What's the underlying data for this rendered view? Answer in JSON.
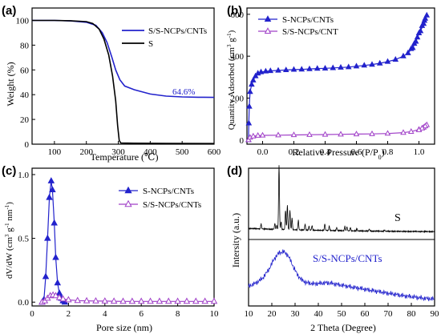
{
  "colors": {
    "blue": "#2222cc",
    "purple": "#a040c8",
    "black": "#000000"
  },
  "chart_data": [
    {
      "type": "line",
      "panel_label": "(a)",
      "xlabel": "Temperature (℃)",
      "ylabel": "Weight (%)",
      "xlim": [
        30,
        600
      ],
      "ylim": [
        0,
        110
      ],
      "xticks": [
        100,
        200,
        300,
        400,
        500,
        600
      ],
      "yticks": [
        0,
        20,
        40,
        60,
        80,
        100
      ],
      "annotation": "64.6%",
      "legend_position": "top-right",
      "series": [
        {
          "name": "S/S-NCPs/CNTs",
          "color": "#2222cc",
          "points": [
            [
              30,
              100
            ],
            [
              100,
              100
            ],
            [
              150,
              99.6
            ],
            [
              200,
              98.5
            ],
            [
              230,
              96
            ],
            [
              250,
              90
            ],
            [
              265,
              82
            ],
            [
              280,
              70
            ],
            [
              292,
              60
            ],
            [
              305,
              52
            ],
            [
              320,
              47
            ],
            [
              350,
              44
            ],
            [
              400,
              40.5
            ],
            [
              450,
              38.8
            ],
            [
              500,
              38.2
            ],
            [
              550,
              37.9
            ],
            [
              600,
              37.8
            ]
          ]
        },
        {
          "name": "S",
          "color": "#000000",
          "points": [
            [
              30,
              100
            ],
            [
              100,
              100
            ],
            [
              150,
              99.7
            ],
            [
              200,
              99
            ],
            [
              220,
              97.5
            ],
            [
              240,
              93
            ],
            [
              255,
              85
            ],
            [
              270,
              72
            ],
            [
              282,
              55
            ],
            [
              292,
              35
            ],
            [
              298,
              15
            ],
            [
              303,
              3
            ],
            [
              308,
              1
            ],
            [
              350,
              0.8
            ],
            [
              450,
              0.6
            ],
            [
              600,
              0.5
            ]
          ]
        }
      ]
    },
    {
      "type": "line",
      "panel_label": "(b)",
      "xlabel": "Relative Pressure (P/P",
      "xlabel_sub": "0",
      "xlabel_end": ")",
      "ylabel": "Quantity Adsorbed (cm",
      "ylabel_sup1": "3",
      "ylabel_mid": " g",
      "ylabel_sup2": "-1",
      "ylabel_end": ")",
      "xlim": [
        -0.1,
        1.1
      ],
      "ylim": [
        -20,
        630
      ],
      "xticks": [
        0.0,
        0.2,
        0.4,
        0.6,
        0.8,
        1.0
      ],
      "xtick_labels": [
        "0.0",
        "0.2",
        "0.4",
        "0.6",
        "0.8",
        "1.0"
      ],
      "yticks": [
        0,
        200,
        400,
        600
      ],
      "legend_position": "top-left",
      "series": [
        {
          "name": "S-NCPs/CNTs",
          "color": "#2222cc",
          "marker": "filled-triangle",
          "points": [
            [
              -0.09,
              0
            ],
            [
              -0.088,
              80
            ],
            [
              -0.085,
              160
            ],
            [
              -0.08,
              230
            ],
            [
              -0.07,
              265
            ],
            [
              -0.06,
              285
            ],
            [
              -0.045,
              305
            ],
            [
              -0.03,
              318
            ],
            [
              -0.01,
              324
            ],
            [
              0.02,
              328
            ],
            [
              0.05,
              330
            ],
            [
              0.1,
              332
            ],
            [
              0.15,
              334
            ],
            [
              0.2,
              336
            ],
            [
              0.25,
              337
            ],
            [
              0.3,
              339
            ],
            [
              0.35,
              341
            ],
            [
              0.4,
              342
            ],
            [
              0.45,
              344
            ],
            [
              0.5,
              346
            ],
            [
              0.55,
              348
            ],
            [
              0.6,
              352
            ],
            [
              0.65,
              356
            ],
            [
              0.7,
              360
            ],
            [
              0.75,
              366
            ],
            [
              0.8,
              374
            ],
            [
              0.85,
              384
            ],
            [
              0.9,
              400
            ],
            [
              0.93,
              415
            ],
            [
              0.96,
              440
            ],
            [
              0.98,
              470
            ],
            [
              1.0,
              510
            ],
            [
              1.02,
              545
            ],
            [
              1.035,
              570
            ],
            [
              1.05,
              595
            ],
            [
              1.04,
              580
            ],
            [
              1.03,
              555
            ],
            [
              1.01,
              520
            ],
            [
              0.99,
              490
            ],
            [
              0.97,
              460
            ],
            [
              0.95,
              435
            ]
          ]
        },
        {
          "name": "S/S-NCPs/CNT",
          "color": "#a040c8",
          "marker": "open-triangle",
          "points": [
            [
              -0.09,
              0
            ],
            [
              -0.08,
              12
            ],
            [
              -0.06,
              18
            ],
            [
              -0.03,
              21
            ],
            [
              0.0,
              22
            ],
            [
              0.1,
              23
            ],
            [
              0.2,
              24
            ],
            [
              0.3,
              25
            ],
            [
              0.4,
              26
            ],
            [
              0.5,
              27
            ],
            [
              0.6,
              28
            ],
            [
              0.7,
              29
            ],
            [
              0.8,
              31
            ],
            [
              0.9,
              35
            ],
            [
              0.95,
              40
            ],
            [
              1.0,
              50
            ],
            [
              1.03,
              60
            ],
            [
              1.05,
              72
            ],
            [
              1.04,
              66
            ],
            [
              1.02,
              56
            ],
            [
              1.0,
              48
            ]
          ]
        }
      ]
    },
    {
      "type": "line",
      "panel_label": "(c)",
      "xlabel": "Pore size (nm)",
      "ylabel": "dV/dW (cm",
      "ylabel_sup1": "3",
      "ylabel_mid": " g",
      "ylabel_sup2": "-1",
      "ylabel_mid2": " nm",
      "ylabel_sup3": "-1",
      "ylabel_end": ")",
      "xlim": [
        0,
        10
      ],
      "ylim": [
        -0.03,
        1.05
      ],
      "xticks": [
        0,
        2,
        4,
        6,
        8,
        10
      ],
      "yticks": [
        0.0,
        0.5,
        1.0
      ],
      "ytick_labels": [
        "0.0",
        "0.5",
        "1.0"
      ],
      "legend_position": "top-right",
      "series": [
        {
          "name": "S-NCPs/CNTs",
          "color": "#2222cc",
          "marker": "filled-triangle",
          "points": [
            [
              0.55,
              0
            ],
            [
              0.65,
              0.02
            ],
            [
              0.75,
              0.2
            ],
            [
              0.85,
              0.5
            ],
            [
              0.95,
              0.82
            ],
            [
              1.05,
              0.95
            ],
            [
              1.12,
              0.88
            ],
            [
              1.22,
              0.62
            ],
            [
              1.3,
              0.35
            ],
            [
              1.4,
              0.15
            ],
            [
              1.5,
              0.07
            ],
            [
              1.6,
              0.03
            ],
            [
              1.7,
              0.01
            ],
            [
              1.8,
              0
            ]
          ]
        },
        {
          "name": "S/S-NCPs/CNTs",
          "color": "#a040c8",
          "marker": "open-triangle",
          "points": [
            [
              0.55,
              0
            ],
            [
              0.7,
              0.01
            ],
            [
              0.85,
              0.03
            ],
            [
              1.0,
              0.05
            ],
            [
              1.15,
              0.055
            ],
            [
              1.3,
              0.05
            ],
            [
              1.5,
              0.035
            ],
            [
              1.7,
              0.025
            ],
            [
              2.0,
              0.018
            ],
            [
              2.5,
              0.012
            ],
            [
              3.0,
              0.01
            ],
            [
              3.5,
              0.009
            ],
            [
              4.0,
              0.008
            ],
            [
              4.5,
              0.007
            ],
            [
              5.0,
              0.006
            ],
            [
              5.5,
              0.006
            ],
            [
              6.0,
              0.006
            ],
            [
              6.5,
              0.006
            ],
            [
              7.0,
              0.006
            ],
            [
              7.5,
              0.006
            ],
            [
              8.0,
              0.006
            ],
            [
              8.5,
              0.006
            ],
            [
              9.0,
              0.006
            ],
            [
              9.5,
              0.006
            ],
            [
              10.0,
              0.006
            ]
          ]
        }
      ]
    },
    {
      "type": "line",
      "panel_label": "(d)",
      "xlabel": "2 Theta (Degree)",
      "ylabel": "Intersity (a.u.)",
      "xlim": [
        10,
        90
      ],
      "xticks": [
        10,
        20,
        30,
        40,
        50,
        60,
        70,
        80,
        90
      ],
      "yticks_shown": false,
      "series": [
        {
          "name": "S",
          "color": "#000000",
          "label_text": "S",
          "baseline": 0.06,
          "peaks": [
            [
              15.4,
              0.08
            ],
            [
              21.3,
              0.09
            ],
            [
              22.1,
              0.06
            ],
            [
              23.1,
              1.0
            ],
            [
              24.0,
              0.12
            ],
            [
              25.9,
              0.3
            ],
            [
              26.7,
              0.38
            ],
            [
              27.8,
              0.3
            ],
            [
              28.7,
              0.18
            ],
            [
              31.4,
              0.15
            ],
            [
              34.3,
              0.09
            ],
            [
              36.0,
              0.06
            ],
            [
              37.3,
              0.07
            ],
            [
              42.8,
              0.1
            ],
            [
              44.7,
              0.07
            ],
            [
              47.9,
              0.05
            ],
            [
              51.4,
              0.07
            ],
            [
              52.3,
              0.06
            ],
            [
              53.8,
              0.05
            ],
            [
              56.6,
              0.04
            ],
            [
              61.9,
              0.03
            ],
            [
              68.5,
              0.02
            ]
          ]
        },
        {
          "name": "S/S-NCPs/CNTs",
          "color": "#2222cc",
          "label_text": "S/S-NCPs/CNTs",
          "points": [
            [
              10,
              0.3
            ],
            [
              13,
              0.36
            ],
            [
              16,
              0.46
            ],
            [
              19,
              0.66
            ],
            [
              21,
              0.85
            ],
            [
              23,
              0.97
            ],
            [
              25,
              1.0
            ],
            [
              27,
              0.92
            ],
            [
              29,
              0.72
            ],
            [
              31,
              0.53
            ],
            [
              33,
              0.42
            ],
            [
              35,
              0.37
            ],
            [
              38,
              0.35
            ],
            [
              41,
              0.36
            ],
            [
              44,
              0.37
            ],
            [
              47,
              0.35
            ],
            [
              50,
              0.32
            ],
            [
              55,
              0.28
            ],
            [
              60,
              0.24
            ],
            [
              65,
              0.2
            ],
            [
              70,
              0.16
            ],
            [
              75,
              0.12
            ],
            [
              80,
              0.09
            ],
            [
              85,
              0.06
            ],
            [
              90,
              0.04
            ]
          ]
        }
      ]
    }
  ]
}
